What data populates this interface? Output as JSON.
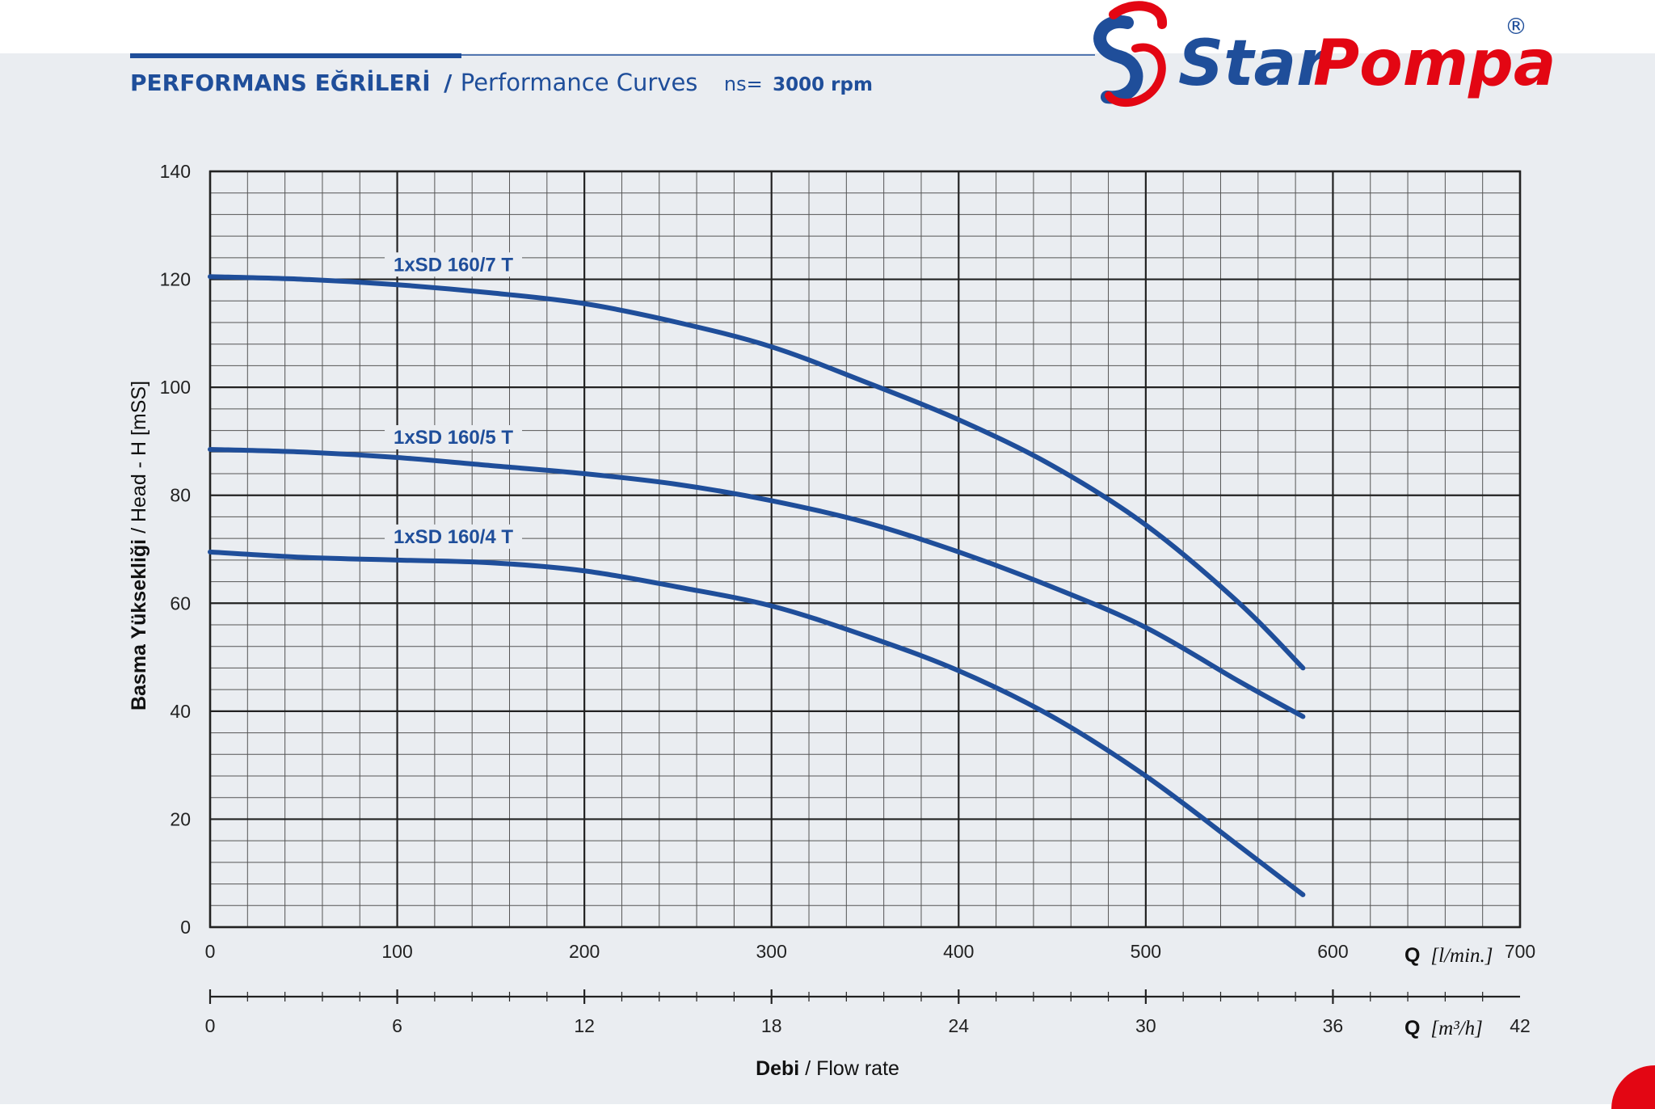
{
  "header": {
    "title_tr": "PERFORMANS EĞRİLERİ",
    "separator": "/",
    "title_en": "Performance Curves",
    "speed_prefix": "ns=",
    "speed_value": "3000 rpm"
  },
  "brand": {
    "name_part1": "Star",
    "name_part2": "Pompa",
    "registered": "®",
    "colors": {
      "blue": "#1f4e9a",
      "red": "#e30613"
    }
  },
  "colors": {
    "background": "#eaedf1",
    "curve": "#1f4e9a",
    "grid_major": "#222222",
    "grid_minor": "#555555"
  },
  "chart_data": {
    "type": "line",
    "title": "PERFORMANS EĞRİLERİ / Performance Curves",
    "ylabel": "Basma Yüksekliği / Head - H [mSS]",
    "ylabel_bold": "Basma Yüksekliği",
    "ylabel_rest": " / Head - H [mSS]",
    "xlabel": "Debi / Flow rate",
    "xlabel_bold": "Debi",
    "xlabel_rest": " / Flow rate",
    "x_unit_label_bold": "Q",
    "x_unit_label": "[l/min.]",
    "x2_unit_label_bold": "Q",
    "x2_unit_label": "[m³/h]",
    "xlim": [
      0,
      700
    ],
    "ylim": [
      0,
      140
    ],
    "x_ticks": [
      "0",
      "100",
      "200",
      "300",
      "400",
      "500",
      "600",
      "700"
    ],
    "y_ticks": [
      "0",
      "20",
      "40",
      "60",
      "80",
      "100",
      "120",
      "140"
    ],
    "x2_ticks": [
      "0",
      "6",
      "12",
      "18",
      "24",
      "30",
      "36",
      "42"
    ],
    "grid": true,
    "series": [
      {
        "name": "1xSD 160/7 T",
        "x": [
          0,
          50,
          100,
          150,
          200,
          250,
          300,
          350,
          400,
          450,
          500,
          550,
          584
        ],
        "y": [
          120.5,
          120,
          119,
          117.5,
          115.5,
          112,
          107.5,
          101,
          94,
          85.5,
          74.5,
          60,
          48
        ]
      },
      {
        "name": "1xSD 160/5 T",
        "x": [
          0,
          50,
          100,
          150,
          200,
          250,
          300,
          350,
          400,
          450,
          500,
          550,
          584
        ],
        "y": [
          88.5,
          88,
          87,
          85.5,
          84,
          82,
          79,
          75,
          69.5,
          63,
          55.5,
          45.5,
          39
        ]
      },
      {
        "name": "1xSD 160/4 T",
        "x": [
          0,
          50,
          100,
          150,
          200,
          250,
          300,
          350,
          400,
          450,
          500,
          550,
          584
        ],
        "y": [
          69.5,
          68.5,
          68,
          67.5,
          66,
          63,
          59.5,
          54,
          47.5,
          39,
          28,
          15,
          6
        ]
      }
    ]
  }
}
